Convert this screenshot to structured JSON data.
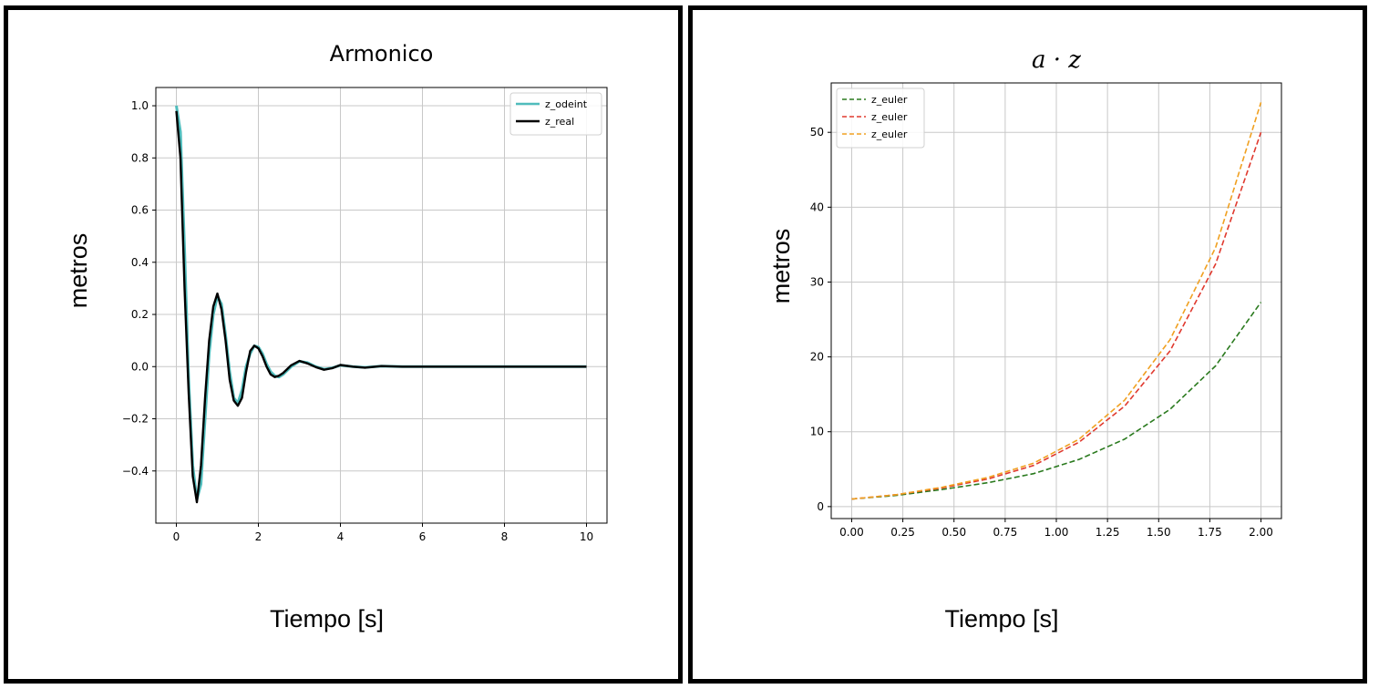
{
  "chart_data": [
    {
      "type": "line",
      "title": "Armonico",
      "xlabel": "Tiempo [s]",
      "ylabel": "metros",
      "xlim": [
        -0.5,
        10.5
      ],
      "ylim": [
        -0.6,
        1.07
      ],
      "xticks": [
        0,
        2,
        4,
        6,
        8,
        10
      ],
      "yticks": [
        -0.4,
        -0.2,
        0.0,
        0.2,
        0.4,
        0.6,
        0.8,
        1.0
      ],
      "xtick_labels": [
        "0",
        "2",
        "4",
        "6",
        "8",
        "10"
      ],
      "ytick_labels": [
        "−0.4",
        "−0.2",
        "0.0",
        "0.2",
        "0.4",
        "0.6",
        "0.8",
        "1.0"
      ],
      "grid": true,
      "legend_position": "upper right",
      "series": [
        {
          "name": "z_odeint",
          "color": "#4fbcbc",
          "dash": "solid",
          "x": [
            0,
            0.1,
            0.2,
            0.3,
            0.4,
            0.5,
            0.6,
            0.7,
            0.8,
            0.9,
            1.0,
            1.1,
            1.2,
            1.3,
            1.4,
            1.5,
            1.6,
            1.7,
            1.8,
            1.9,
            2.0,
            2.1,
            2.2,
            2.3,
            2.4,
            2.5,
            2.6,
            2.8,
            3.0,
            3.2,
            3.4,
            3.6,
            3.8,
            4.0,
            4.3,
            4.6,
            5.0,
            5.5,
            6.0,
            7.0,
            8.0,
            9.0,
            10.0
          ],
          "y": [
            1.0,
            0.9,
            0.45,
            -0.05,
            -0.38,
            -0.51,
            -0.45,
            -0.2,
            0.05,
            0.2,
            0.27,
            0.24,
            0.12,
            -0.02,
            -0.12,
            -0.14,
            -0.09,
            0.0,
            0.05,
            0.08,
            0.075,
            0.05,
            0.01,
            -0.02,
            -0.035,
            -0.04,
            -0.03,
            0.0,
            0.02,
            0.015,
            0.0,
            -0.01,
            -0.005,
            0.005,
            0.0,
            -0.003,
            0.002,
            0.0,
            0.0,
            0.0,
            0.0,
            0.0,
            0.0
          ]
        },
        {
          "name": "z_real",
          "color": "#000000",
          "dash": "solid",
          "x": [
            0,
            0.1,
            0.2,
            0.3,
            0.4,
            0.5,
            0.6,
            0.7,
            0.8,
            0.9,
            1.0,
            1.1,
            1.2,
            1.3,
            1.4,
            1.5,
            1.6,
            1.7,
            1.8,
            1.9,
            2.0,
            2.1,
            2.2,
            2.3,
            2.4,
            2.5,
            2.6,
            2.8,
            3.0,
            3.2,
            3.4,
            3.6,
            3.8,
            4.0,
            4.3,
            4.6,
            5.0,
            5.5,
            6.0,
            7.0,
            8.0,
            9.0,
            10.0
          ],
          "y": [
            0.98,
            0.8,
            0.3,
            -0.1,
            -0.42,
            -0.52,
            -0.38,
            -0.12,
            0.1,
            0.23,
            0.28,
            0.22,
            0.1,
            -0.05,
            -0.13,
            -0.15,
            -0.12,
            -0.02,
            0.06,
            0.08,
            0.07,
            0.04,
            0.0,
            -0.03,
            -0.04,
            -0.035,
            -0.025,
            0.005,
            0.022,
            0.012,
            -0.002,
            -0.012,
            -0.006,
            0.006,
            0.0,
            -0.004,
            0.002,
            0.0,
            0.0,
            0.0,
            0.0,
            0.0,
            0.0
          ]
        }
      ]
    },
    {
      "type": "line",
      "title": "a · z",
      "xlabel": "Tiempo [s]",
      "ylabel": "metros",
      "xlim": [
        -0.1,
        2.1
      ],
      "ylim": [
        -1.6,
        56.6
      ],
      "xticks": [
        0.0,
        0.25,
        0.5,
        0.75,
        1.0,
        1.25,
        1.5,
        1.75,
        2.0
      ],
      "yticks": [
        0,
        10,
        20,
        30,
        40,
        50
      ],
      "xtick_labels": [
        "0.00",
        "0.25",
        "0.50",
        "0.75",
        "1.00",
        "1.25",
        "1.50",
        "1.75",
        "2.00"
      ],
      "ytick_labels": [
        "0",
        "10",
        "20",
        "30",
        "40",
        "50"
      ],
      "grid": true,
      "legend_position": "upper left",
      "series": [
        {
          "name": "z_euler",
          "color": "#2a7a1e",
          "dash": "dashed",
          "x": [
            0.0,
            0.222,
            0.444,
            0.667,
            0.889,
            1.111,
            1.333,
            1.556,
            1.778,
            2.0
          ],
          "y": [
            1.0,
            1.5,
            2.3,
            3.2,
            4.4,
            6.3,
            9.0,
            13.0,
            18.8,
            27.3
          ]
        },
        {
          "name": "z_euler",
          "color": "#e03a2f",
          "dash": "dashed",
          "x": [
            0.0,
            0.222,
            0.444,
            0.667,
            0.889,
            1.111,
            1.333,
            1.556,
            1.778,
            2.0
          ],
          "y": [
            1.0,
            1.6,
            2.5,
            3.7,
            5.5,
            8.6,
            13.4,
            20.8,
            32.4,
            50.0
          ]
        },
        {
          "name": "z_euler",
          "color": "#f0a020",
          "dash": "dashed",
          "x": [
            0.0,
            0.222,
            0.444,
            0.667,
            0.889,
            1.111,
            1.333,
            1.556,
            1.778,
            2.0
          ],
          "y": [
            1.0,
            1.6,
            2.6,
            3.9,
            5.8,
            9.0,
            14.2,
            22.3,
            34.6,
            54.0
          ]
        }
      ]
    }
  ]
}
